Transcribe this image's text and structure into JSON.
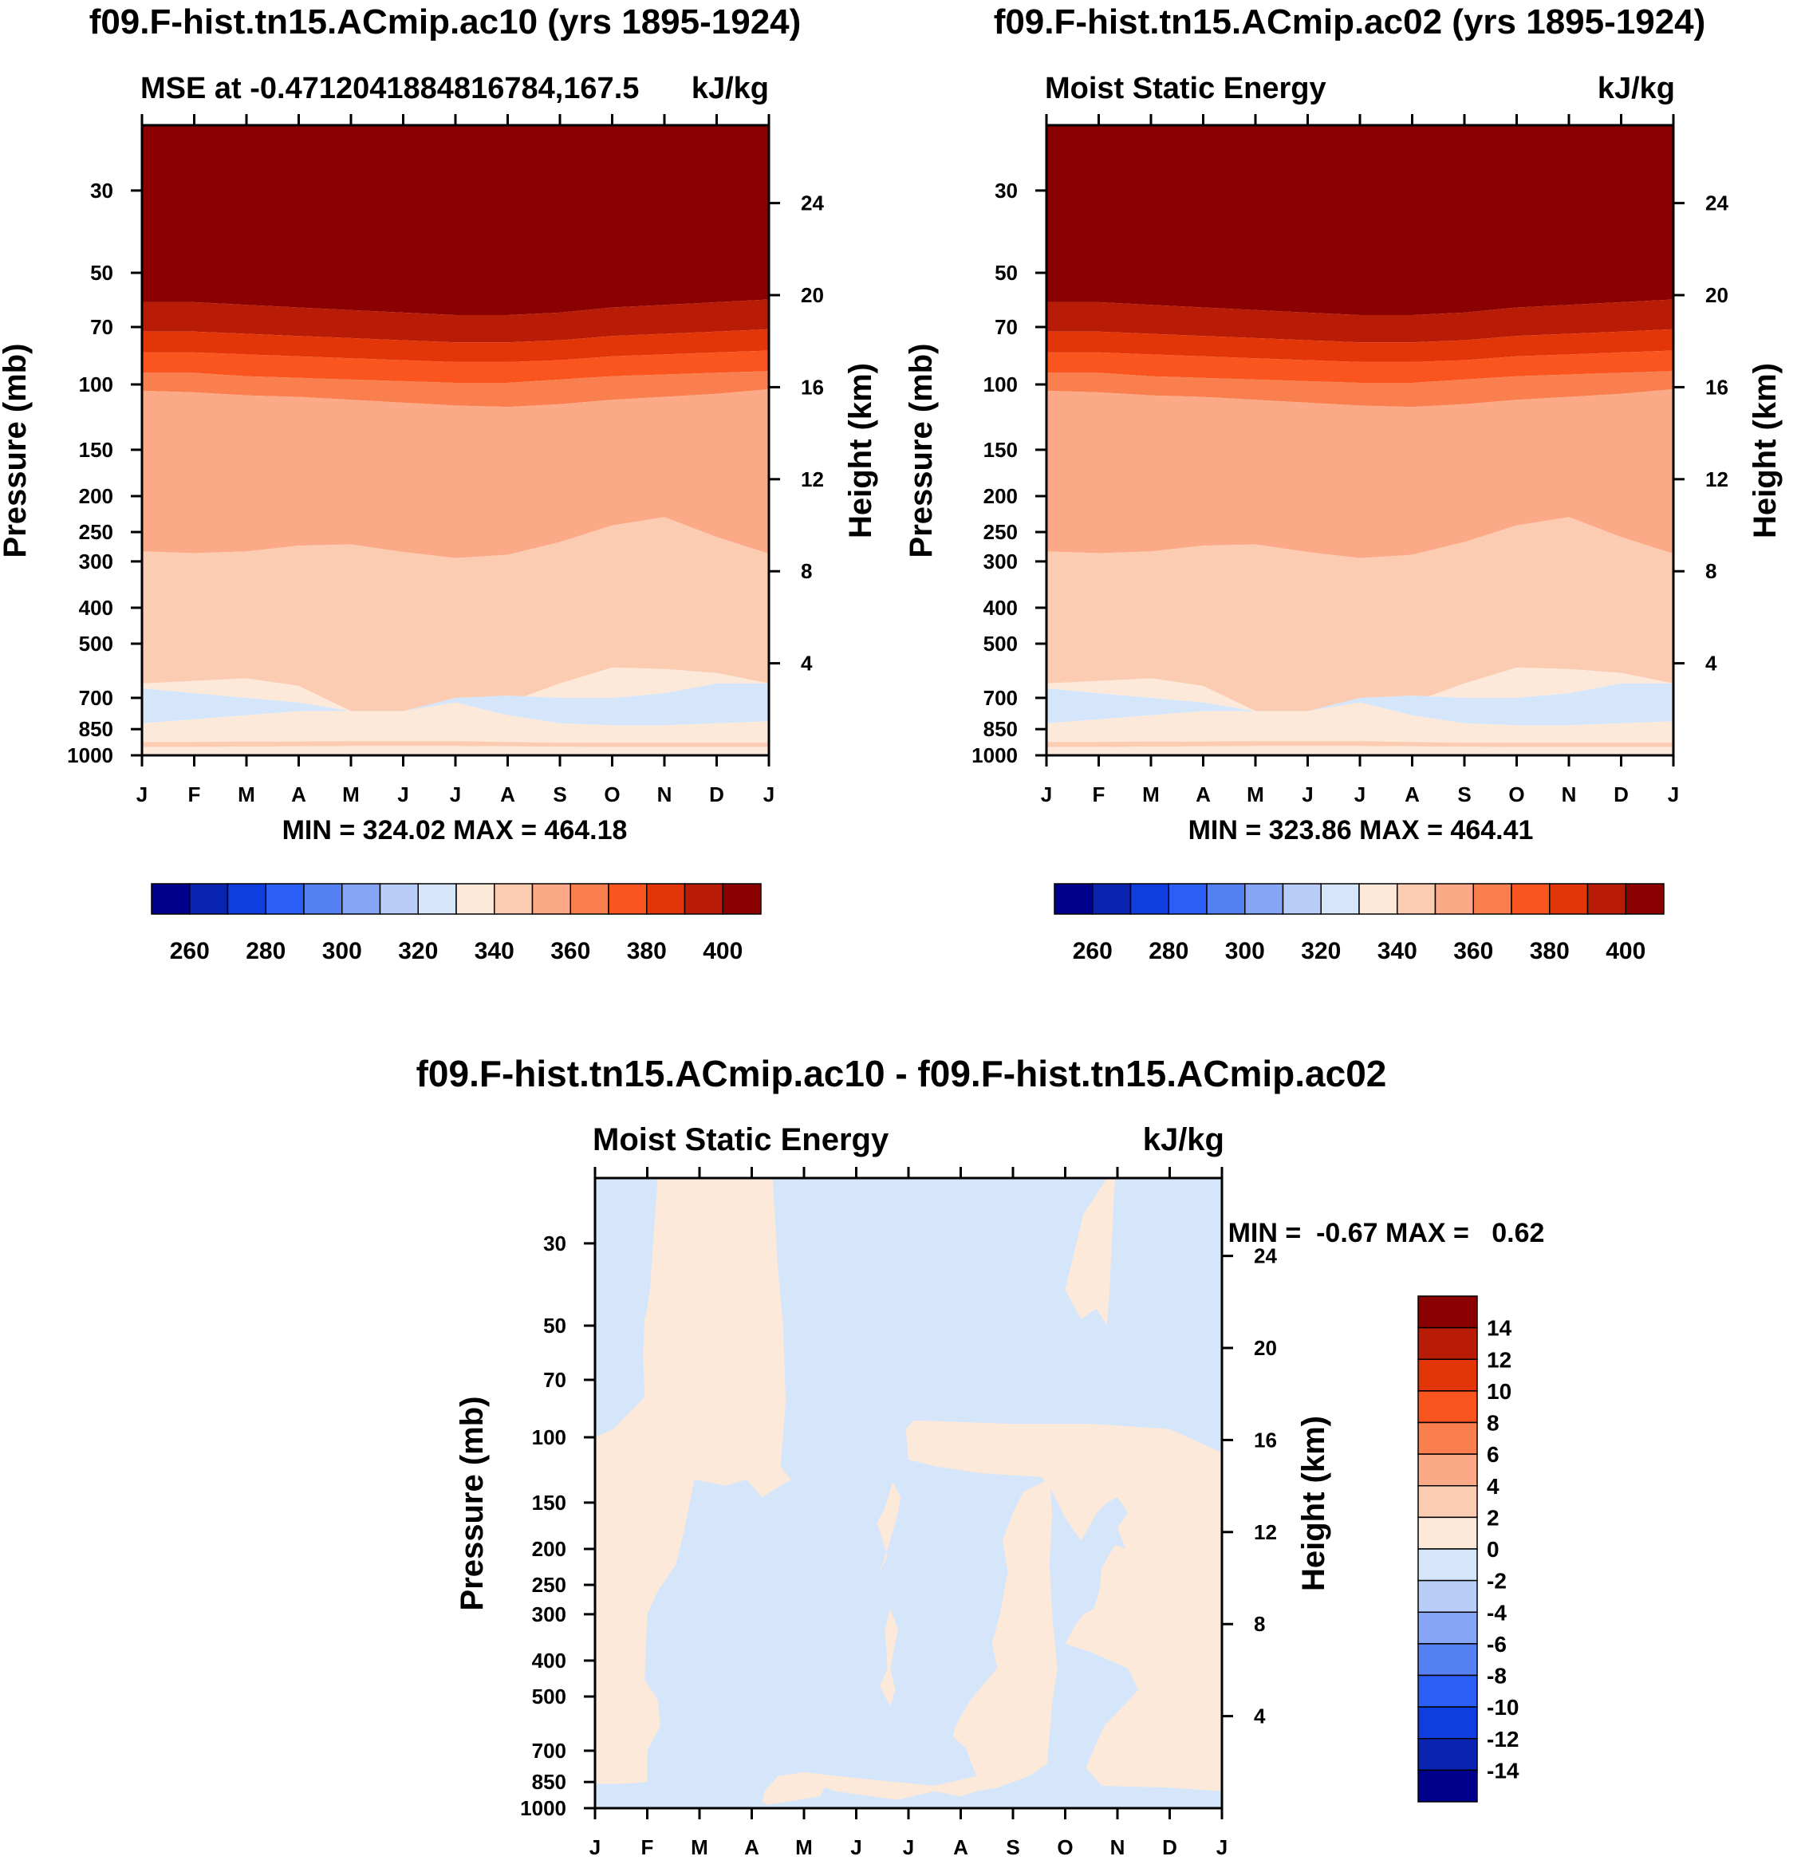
{
  "colors": {
    "mse": [
      "#00008b",
      "#0a24b2",
      "#0e3ee0",
      "#2b5ef5",
      "#5580f2",
      "#86a6f5",
      "#b8cdf7",
      "#d5e6fa",
      "#fde9d9",
      "#fcccb2",
      "#fba987",
      "#fa7f4f",
      "#fa541f",
      "#e33608",
      "#b81c06",
      "#8b0000"
    ],
    "diff": [
      "#00008b",
      "#0a24b2",
      "#0e3ee0",
      "#2b5ef5",
      "#5580f2",
      "#86a6f5",
      "#b8cdf7",
      "#d5e6fa",
      "#fde9d9",
      "#fcccb2",
      "#fba987",
      "#fa7f4f",
      "#fa541f",
      "#e33608",
      "#b81c06",
      "#8b0000"
    ]
  },
  "panels": [
    {
      "id": "ac10",
      "title": "f09.F-hist.tn15.ACmip.ac10 (yrs 1895-1924)",
      "left_string": "MSE at -0.4712041884816784,167.5",
      "right_string": "kJ/kg",
      "stats": "MIN = 324.02 MAX = 464.18",
      "ylabel": "Pressure (mb)",
      "y2label": "Height (km)"
    },
    {
      "id": "ac02",
      "title": "f09.F-hist.tn15.ACmip.ac02 (yrs 1895-1924)",
      "left_string": "Moist Static Energy",
      "right_string": "kJ/kg",
      "stats": "MIN = 323.86 MAX = 464.41",
      "ylabel": "Pressure (mb)",
      "y2label": "Height (km)"
    },
    {
      "id": "diff",
      "title": "f09.F-hist.tn15.ACmip.ac10 - f09.F-hist.tn15.ACmip.ac02",
      "left_string": "Moist Static Energy",
      "right_string": "kJ/kg",
      "stats": "MIN =  -0.67 MAX =   0.62",
      "ylabel": "Pressure (mb)",
      "y2label": "Height (km)"
    }
  ],
  "chart_data": [
    {
      "type": "heatmap",
      "title": "f09.F-hist.tn15.ACmip.ac10 (yrs 1895-1924)",
      "subtitle": "MSE at -0.4712041884816784,167.5",
      "units": "kJ/kg",
      "xlabel": "",
      "ylabel": "Pressure (mb)",
      "y2label": "Height (km)",
      "x_ticks": [
        "J",
        "F",
        "M",
        "A",
        "M",
        "J",
        "J",
        "A",
        "S",
        "O",
        "N",
        "D",
        "J"
      ],
      "y_ticks": [
        30,
        50,
        70,
        100,
        150,
        200,
        250,
        300,
        400,
        500,
        700,
        850,
        1000
      ],
      "y2_ticks": [
        24,
        20,
        16,
        12,
        8,
        4
      ],
      "ylim": [
        1000,
        20
      ],
      "levels": [
        250,
        260,
        270,
        280,
        290,
        300,
        310,
        320,
        330,
        340,
        350,
        360,
        370,
        380,
        390,
        400,
        410
      ],
      "colorbar_labels": [
        260,
        280,
        300,
        320,
        340,
        360,
        380,
        400
      ],
      "min": 324.02,
      "max": 464.18
    },
    {
      "type": "heatmap",
      "title": "f09.F-hist.tn15.ACmip.ac02 (yrs 1895-1924)",
      "subtitle": "Moist Static Energy",
      "units": "kJ/kg",
      "xlabel": "",
      "ylabel": "Pressure (mb)",
      "y2label": "Height (km)",
      "x_ticks": [
        "J",
        "F",
        "M",
        "A",
        "M",
        "J",
        "J",
        "A",
        "S",
        "O",
        "N",
        "D",
        "J"
      ],
      "y_ticks": [
        30,
        50,
        70,
        100,
        150,
        200,
        250,
        300,
        400,
        500,
        700,
        850,
        1000
      ],
      "y2_ticks": [
        24,
        20,
        16,
        12,
        8,
        4
      ],
      "ylim": [
        1000,
        20
      ],
      "levels": [
        250,
        260,
        270,
        280,
        290,
        300,
        310,
        320,
        330,
        340,
        350,
        360,
        370,
        380,
        390,
        400,
        410
      ],
      "colorbar_labels": [
        260,
        280,
        300,
        320,
        340,
        360,
        380,
        400
      ],
      "min": 323.86,
      "max": 464.41
    },
    {
      "type": "heatmap",
      "title": "f09.F-hist.tn15.ACmip.ac10 - f09.F-hist.tn15.ACmip.ac02",
      "subtitle": "Moist Static Energy",
      "units": "kJ/kg",
      "xlabel": "",
      "ylabel": "Pressure (mb)",
      "y2label": "Height (km)",
      "x_ticks": [
        "J",
        "F",
        "M",
        "A",
        "M",
        "J",
        "J",
        "A",
        "S",
        "O",
        "N",
        "D",
        "J"
      ],
      "y_ticks": [
        30,
        50,
        70,
        100,
        150,
        200,
        250,
        300,
        400,
        500,
        700,
        850,
        1000
      ],
      "y2_ticks": [
        24,
        20,
        16,
        12,
        8,
        4
      ],
      "ylim": [
        1000,
        20
      ],
      "levels": [
        -16,
        -14,
        -12,
        -10,
        -8,
        -6,
        -4,
        -2,
        0,
        2,
        4,
        6,
        8,
        10,
        12,
        14,
        16
      ],
      "colorbar_labels": [
        14,
        12,
        10,
        8,
        6,
        4,
        2,
        0,
        -2,
        -4,
        -6,
        -8,
        -10,
        -12,
        -14
      ],
      "min": -0.67,
      "max": 0.62
    }
  ]
}
